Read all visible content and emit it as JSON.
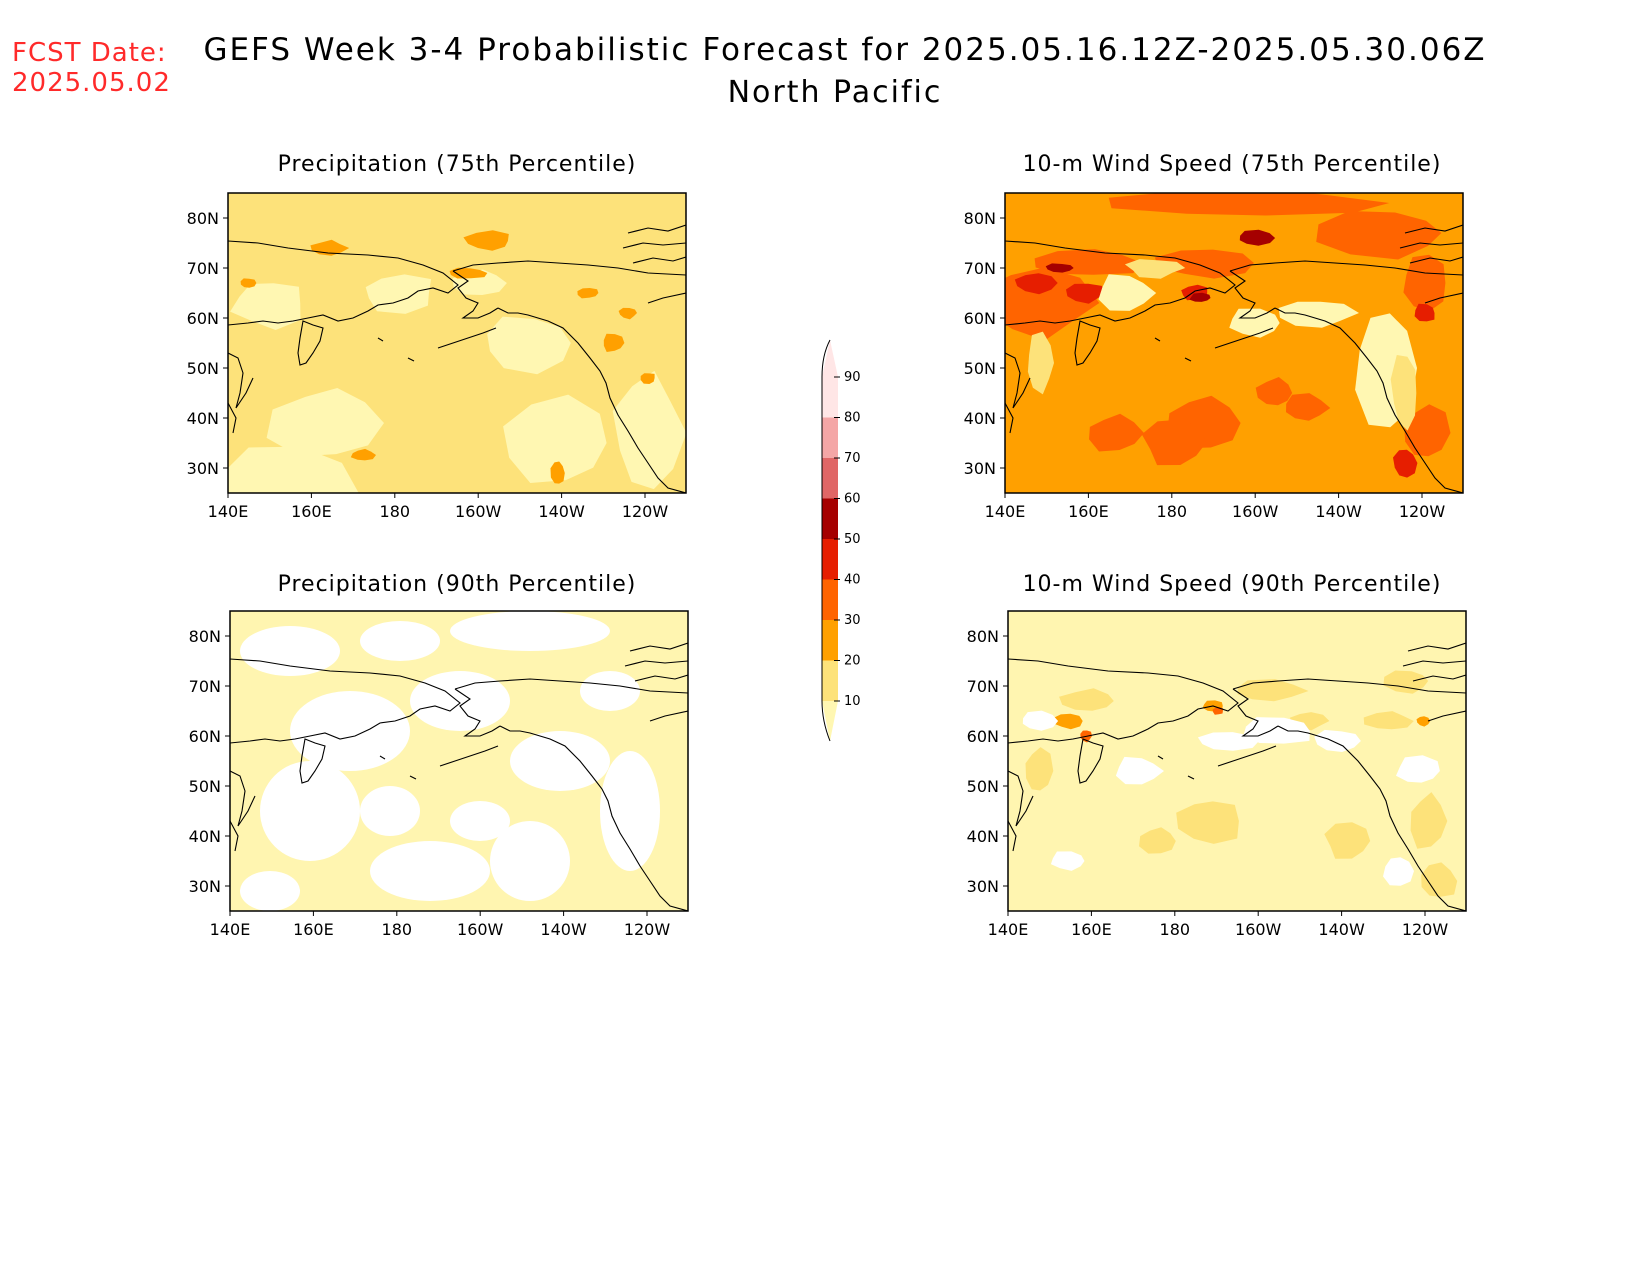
{
  "header": {
    "fcst_label": "FCST Date:",
    "fcst_date": "2025.05.02",
    "title": "GEFS Week 3-4 Probabilistic Forecast for 2025.05.16.12Z-2025.05.30.06Z",
    "subtitle": "North Pacific"
  },
  "axes": {
    "lat_labels": [
      "80N",
      "70N",
      "60N",
      "50N",
      "40N",
      "30N"
    ],
    "lon_labels": [
      "140E",
      "160E",
      "180",
      "160W",
      "140W",
      "120W"
    ]
  },
  "panels": [
    {
      "id": "p75",
      "title": "Precipitation (75th Percentile)",
      "base_color": "#fde27a"
    },
    {
      "id": "w75",
      "title": "10-m Wind Speed (75th Percentile)",
      "base_color": "#ffa000"
    },
    {
      "id": "p90",
      "title": "Precipitation (90th Percentile)",
      "base_color": "#fff5b0"
    },
    {
      "id": "w90",
      "title": "10-m Wind Speed (90th Percentile)",
      "base_color": "#fff5b0"
    }
  ],
  "colorbar": {
    "levels": [
      "10",
      "20",
      "30",
      "40",
      "50",
      "60",
      "70",
      "80",
      "90"
    ],
    "colors": [
      "#fff7b2",
      "#fde27a",
      "#ffa000",
      "#ff6400",
      "#e61e00",
      "#a50000",
      "#e06666",
      "#f4a6a6",
      "#ffe6e6"
    ]
  }
}
